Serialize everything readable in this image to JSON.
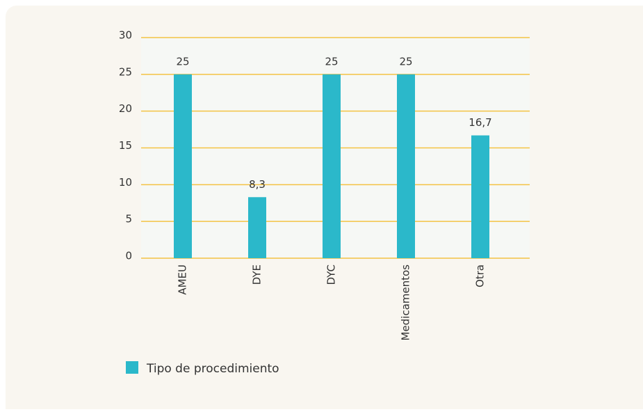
{
  "chart_data": {
    "type": "bar",
    "categories": [
      "AMEU",
      "DYE",
      "DYC",
      "Medicamentos",
      "Otra"
    ],
    "series": [
      {
        "name": "Tipo de procedimiento",
        "color": "#2bb8ca",
        "values": [
          25,
          8.3,
          25,
          25,
          16.7
        ],
        "value_labels": [
          "25",
          "8,3",
          "25",
          "25",
          "16,7"
        ]
      }
    ],
    "ylim": [
      0,
      30
    ],
    "yticks": [
      0,
      5,
      10,
      15,
      20,
      25,
      30
    ],
    "grid": true,
    "legend": "bottom-left"
  }
}
